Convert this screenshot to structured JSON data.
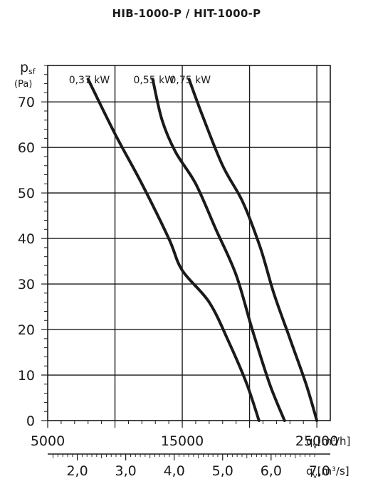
{
  "chart_data": {
    "type": "line",
    "title": "HIB-1000-P / HIT-1000-P",
    "ylabel": {
      "symbol": "p",
      "subscript": "sf",
      "unit": "(Pa)"
    },
    "xlabel_primary": {
      "symbol": "q",
      "subscript": "V",
      "unit_prefix": "[m",
      "unit_sup": "3",
      "unit_suffix": "/h]"
    },
    "xlabel_secondary": {
      "symbol": "q",
      "subscript": "V",
      "unit_prefix": "[m",
      "unit_sup": "3",
      "unit_suffix": "/s]"
    },
    "xlim": [
      5000,
      26000
    ],
    "ylim": [
      0,
      78
    ],
    "x_ticks": [
      5000,
      15000,
      25000
    ],
    "x_tick_labels": [
      "5000",
      "15000",
      "25000"
    ],
    "x_gridlines": [
      5000,
      10000,
      15000,
      20000,
      25000
    ],
    "x2_ticks": [
      7200,
      10800,
      14400,
      18000,
      21600,
      25200
    ],
    "x2_tick_labels": [
      "2,0",
      "3,0",
      "4,0",
      "5,0",
      "6,0",
      "7,0"
    ],
    "y_ticks": [
      0,
      10,
      20,
      30,
      40,
      50,
      60,
      70
    ],
    "y_tick_labels": [
      "0",
      "10",
      "20",
      "30",
      "40",
      "50",
      "60",
      "70"
    ],
    "grid": true,
    "series": [
      {
        "name": "0,37 kW",
        "color": "#1a1a1a",
        "x": [
          8000,
          10000,
          12000,
          14000,
          15000,
          17000,
          18500,
          19800,
          20700
        ],
        "y": [
          75,
          63,
          52,
          40,
          33,
          26,
          17,
          8,
          0
        ]
      },
      {
        "name": "0,55 kW",
        "color": "#1a1a1a",
        "x": [
          12800,
          13500,
          14500,
          16000,
          17500,
          19000,
          20200,
          21500,
          22600
        ],
        "y": [
          75,
          66,
          59,
          52,
          42,
          32,
          20,
          8,
          0
        ]
      },
      {
        "name": "0,75 kW",
        "color": "#1a1a1a",
        "x": [
          15500,
          16500,
          18000,
          19500,
          20800,
          21800,
          23000,
          24200,
          25000
        ],
        "y": [
          75,
          67,
          56,
          48,
          38,
          28,
          18,
          8,
          0
        ]
      }
    ]
  }
}
